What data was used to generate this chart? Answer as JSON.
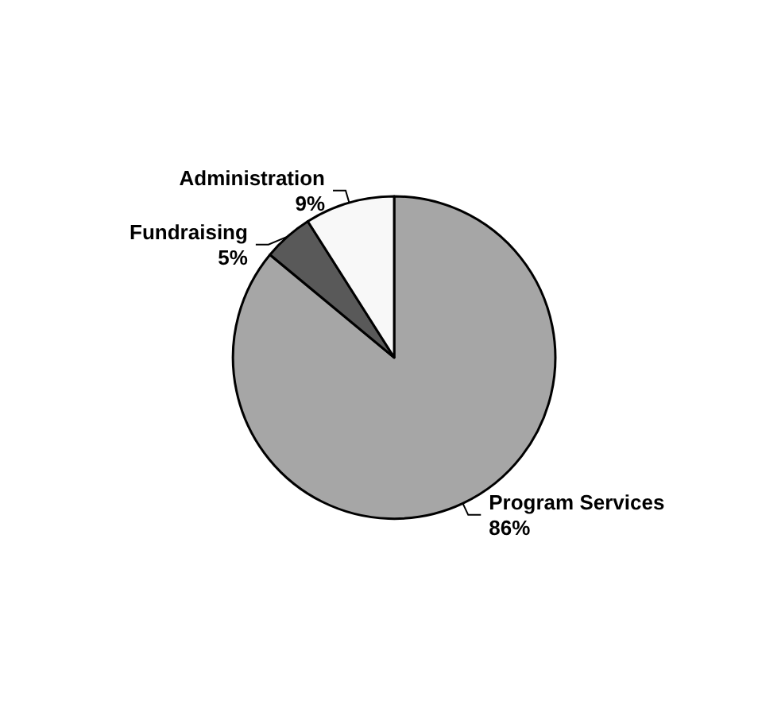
{
  "chart_data": {
    "type": "pie",
    "categories": [
      "Program Services",
      "Fundraising",
      "Administration"
    ],
    "values": [
      86,
      5,
      9
    ],
    "value_labels": [
      "86%",
      "5%",
      "9%"
    ],
    "colors": [
      "#a6a6a6",
      "#595959",
      "#f8f8f8"
    ],
    "legend": false
  }
}
